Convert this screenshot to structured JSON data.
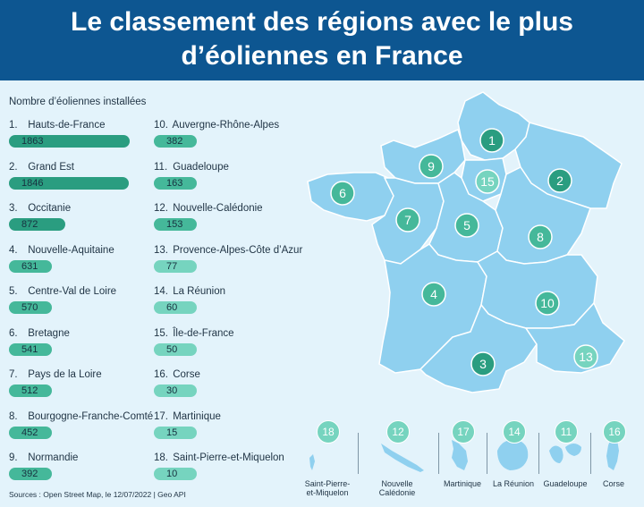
{
  "header": {
    "title_line1": "Le classement des régions avec le plus",
    "title_line2": "d’éoliennes en France"
  },
  "subtitle": "Nombre d’éoliennes installées",
  "source": "Sources : Open Street Map, le 12/07/2022 | Geo API",
  "colors": {
    "header_bg": "#0d5691",
    "background": "#e3f3fb",
    "map_fill": "#8fd0ef",
    "map_stroke": "#ffffff",
    "bar_dark": "#2a9d80",
    "bar_mid": "#45b89a",
    "bar_light": "#76d4bf"
  },
  "chart_data": {
    "type": "bar",
    "title": "Le classement des régions avec le plus d’éoliennes en France",
    "ylabel": "Nombre d’éoliennes installées",
    "xmax": 1863,
    "categories": [
      "Hauts-de-France",
      "Grand Est",
      "Occitanie",
      "Nouvelle-Aquitaine",
      "Centre-Val de Loire",
      "Bretagne",
      "Pays de la Loire",
      "Bourgogne-Franche-Comté",
      "Normandie",
      "Auvergne-Rhône-Alpes",
      "Guadeloupe",
      "Nouvelle-Calédonie",
      "Provence-Alpes-Côte d’Azur",
      "La Réunion",
      "Île-de-France",
      "Corse",
      "Martinique",
      "Saint-Pierre-et-Miquelon"
    ],
    "values": [
      1863,
      1846,
      872,
      631,
      570,
      541,
      512,
      452,
      392,
      382,
      163,
      153,
      77,
      60,
      50,
      30,
      15,
      10
    ],
    "ranks": [
      "1.",
      "2.",
      "3.",
      "4.",
      "5.",
      "6.",
      "7.",
      "8.",
      "9.",
      "10.",
      "11.",
      "12.",
      "13.",
      "14.",
      "15.",
      "16.",
      "17.",
      "18."
    ],
    "map_markers": [
      "1",
      "2",
      "3",
      "4",
      "5",
      "6",
      "7",
      "8",
      "9",
      "10",
      "13",
      "15"
    ],
    "overseas": [
      {
        "rank": "18",
        "name_line1": "Saint-Pierre-",
        "name_line2": "et-Miquelon"
      },
      {
        "rank": "12",
        "name_line1": "Nouvelle",
        "name_line2": "Calédonie"
      },
      {
        "rank": "17",
        "name_line1": "Martinique",
        "name_line2": ""
      },
      {
        "rank": "14",
        "name_line1": "La Réunion",
        "name_line2": ""
      },
      {
        "rank": "11",
        "name_line1": "Guadeloupe",
        "name_line2": ""
      },
      {
        "rank": "16",
        "name_line1": "Corse",
        "name_line2": ""
      }
    ]
  }
}
